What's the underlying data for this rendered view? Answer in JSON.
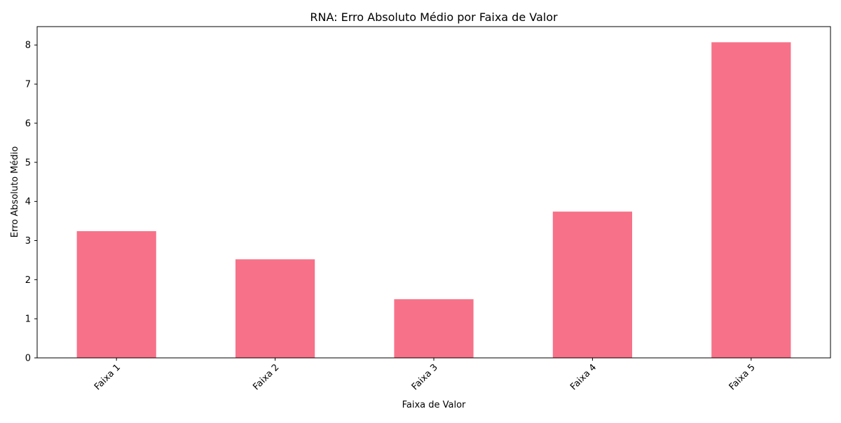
{
  "chart_data": {
    "type": "bar",
    "title": "RNA: Erro Absoluto Médio por Faixa de Valor",
    "xlabel": "Faixa de Valor",
    "ylabel": "Erro Absoluto Médio",
    "categories": [
      "Faixa 1",
      "Faixa 2",
      "Faixa 3",
      "Faixa 4",
      "Faixa 5"
    ],
    "values": [
      3.24,
      2.52,
      1.5,
      3.74,
      8.07
    ],
    "ylim": [
      0,
      8.47
    ],
    "yticks": [
      0,
      1,
      2,
      3,
      4,
      5,
      6,
      7,
      8
    ],
    "grid": false,
    "legend": "none",
    "bar_color": "#f77189",
    "x_tick_rotation_deg": 45
  }
}
